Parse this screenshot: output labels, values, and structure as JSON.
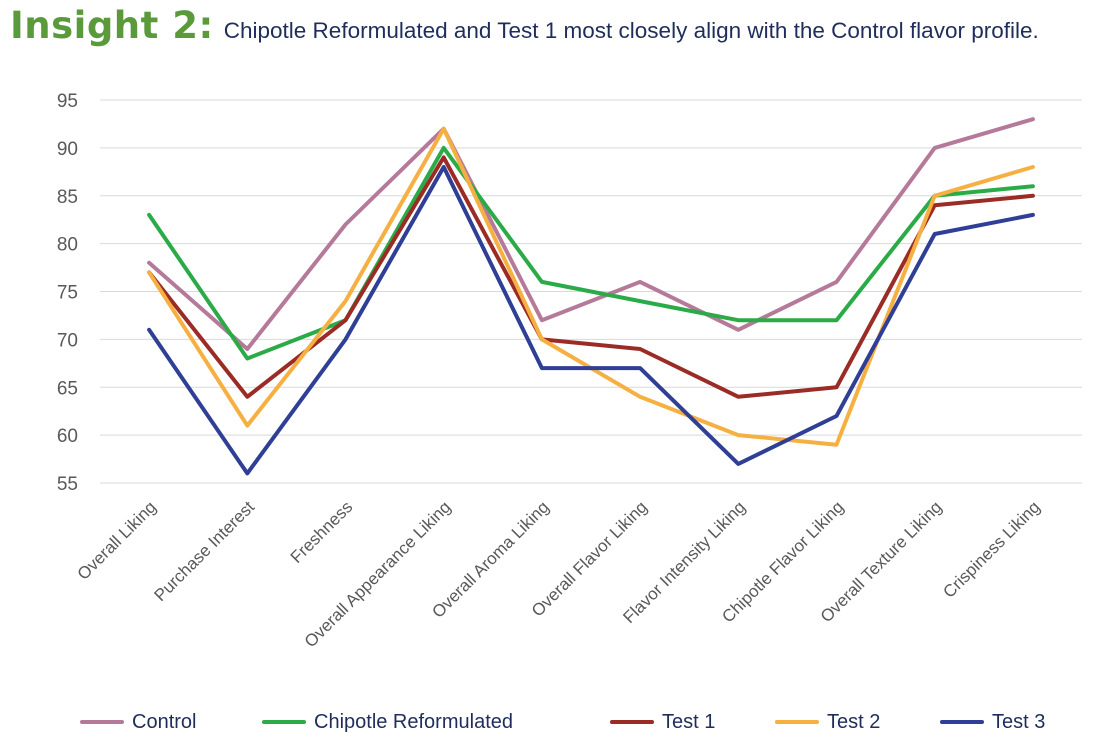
{
  "header": {
    "label": "Insight 2:",
    "text": "Chipotle Reformulated and Test 1 most closely align with the Control flavor profile."
  },
  "chart_data": {
    "type": "line",
    "categories": [
      "Overall Liking",
      "Purchase Interest",
      "Freshness",
      "Overall Appearance Liking",
      "Overall Aroma Liking",
      "Overall Flavor Liking",
      "Flavor Intensity Liking",
      "Chipotle Flavor Liking",
      "Overall Texture Liking",
      "Crispiness Liking"
    ],
    "series": [
      {
        "name": "Control",
        "color": "#b57a9a",
        "values": [
          78,
          69,
          82,
          92,
          72,
          76,
          71,
          76,
          90,
          93
        ]
      },
      {
        "name": "Chipotle Reformulated",
        "color": "#2bab47",
        "values": [
          83,
          68,
          72,
          90,
          76,
          74,
          72,
          72,
          85,
          86
        ]
      },
      {
        "name": "Test 1",
        "color": "#9b2b25",
        "values": [
          77,
          64,
          72,
          89,
          70,
          69,
          64,
          65,
          84,
          85
        ]
      },
      {
        "name": "Test 2",
        "color": "#f6b042",
        "values": [
          77,
          61,
          74,
          92,
          70,
          64,
          60,
          59,
          85,
          88
        ]
      },
      {
        "name": "Test 3",
        "color": "#2e3f95",
        "values": [
          71,
          56,
          70,
          88,
          67,
          67,
          57,
          62,
          81,
          83
        ]
      }
    ],
    "ylim": [
      55,
      95
    ],
    "yticks": [
      "95",
      "90",
      "85",
      "80",
      "75",
      "70",
      "65",
      "60",
      "55"
    ],
    "grid": true,
    "legend_position": "bottom"
  }
}
